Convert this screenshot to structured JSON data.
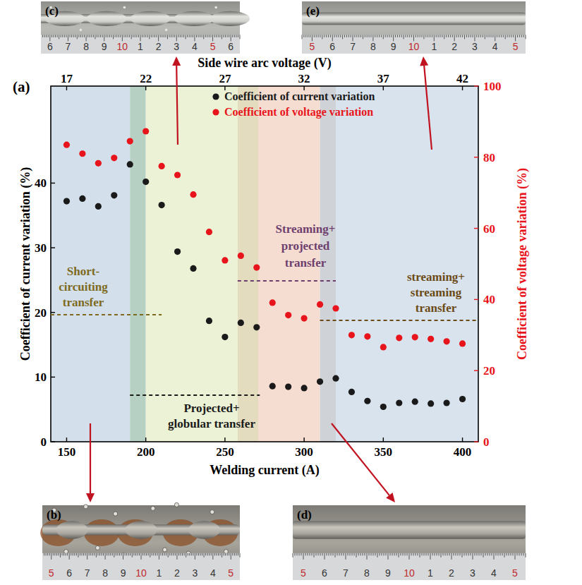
{
  "chart_data": {
    "type": "scatter",
    "panel_label": "(a)",
    "x_label": "Welding current (A)",
    "x2_label": "Side wire arc voltage (V)",
    "y_label": "Coefficient of current variation (%)",
    "y2_label": "Coefficient of voltage variation (%)",
    "x": [
      150,
      160,
      170,
      180,
      190,
      200,
      210,
      220,
      230,
      240,
      250,
      260,
      270,
      280,
      290,
      300,
      310,
      320,
      330,
      340,
      350,
      360,
      370,
      380,
      390,
      400
    ],
    "xlim": [
      140,
      410
    ],
    "xticks": [
      150,
      200,
      250,
      300,
      350,
      400
    ],
    "x2lim": [
      16,
      43
    ],
    "x2ticks": [
      17,
      22,
      27,
      32,
      37,
      42
    ],
    "ylim": [
      0,
      55
    ],
    "yticks": [
      0,
      10,
      20,
      30,
      40
    ],
    "y2lim": [
      0,
      100
    ],
    "y2ticks": [
      0,
      20,
      40,
      60,
      80,
      100
    ],
    "legend": "upper center",
    "series": [
      {
        "name": "Coefficient of current variation",
        "color": "#1a1a1a",
        "marker": "circle",
        "values": [
          37.2,
          37.6,
          36.4,
          38.1,
          42.9,
          40.2,
          36.6,
          29.4,
          26.8,
          18.7,
          16.2,
          18.4,
          17.7,
          8.6,
          8.5,
          8.3,
          9.3,
          9.8,
          7.7,
          6.3,
          5.4,
          6.0,
          6.2,
          5.9,
          6.0,
          6.6
        ]
      },
      {
        "name": "Coefficient of voltage variation",
        "color": "#e8141b",
        "marker": "circle",
        "axis": "y2",
        "values": [
          83.5,
          81.0,
          78.3,
          79.8,
          84.5,
          87.3,
          77.5,
          75.0,
          69.5,
          59.0,
          51.0,
          52.3,
          49.0,
          39.1,
          35.6,
          34.7,
          38.6,
          37.5,
          30.0,
          29.6,
          26.6,
          29.2,
          29.4,
          28.9,
          28.2,
          27.6
        ]
      }
    ],
    "regions": [
      {
        "x": [
          140,
          190
        ],
        "color": "#d3dfeb"
      },
      {
        "x": [
          190,
          200
        ],
        "color": "#b7d0c4"
      },
      {
        "x": [
          200,
          258
        ],
        "color": "#ecf2d6"
      },
      {
        "x": [
          258,
          271
        ],
        "color": "#e3dcbf"
      },
      {
        "x": [
          271,
          310
        ],
        "color": "#f6ddd2"
      },
      {
        "x": [
          310,
          320
        ],
        "color": "#cfd2d6"
      },
      {
        "x": [
          320,
          410
        ],
        "color": "#d9e3ee"
      }
    ],
    "annotations": [
      {
        "lines": [
          "Short-",
          "circuiting",
          "transfer"
        ],
        "color": "#7d6a1e"
      },
      {
        "lines": [
          "Projected+",
          "globular transfer"
        ],
        "color": "#1a1a1a"
      },
      {
        "lines": [
          "Streaming+",
          "projected",
          "transfer"
        ],
        "color": "#6e3f6e"
      },
      {
        "lines": [
          "streaming+",
          "streaming",
          "transfer"
        ],
        "color": "#6b4a16"
      }
    ]
  },
  "photos": [
    {
      "label": "(b)",
      "ruler": [
        {
          "text": "5",
          "color": "#c0282d"
        },
        {
          "text": "6",
          "color": "#333333"
        },
        {
          "text": "7",
          "color": "#333333"
        },
        {
          "text": "8",
          "color": "#333333"
        },
        {
          "text": "9",
          "color": "#333333"
        },
        {
          "text": "10",
          "color": "#c0282d"
        },
        {
          "text": "1",
          "color": "#333333"
        },
        {
          "text": "2",
          "color": "#333333"
        },
        {
          "text": "3",
          "color": "#333333"
        },
        {
          "text": "4",
          "color": "#333333"
        },
        {
          "text": "5",
          "color": "#c0282d"
        }
      ]
    },
    {
      "label": "(c)",
      "ruler": [
        {
          "text": "6",
          "color": "#333333"
        },
        {
          "text": "7",
          "color": "#333333"
        },
        {
          "text": "8",
          "color": "#333333"
        },
        {
          "text": "9",
          "color": "#333333"
        },
        {
          "text": "10",
          "color": "#c0282d"
        },
        {
          "text": "1",
          "color": "#333333"
        },
        {
          "text": "2",
          "color": "#333333"
        },
        {
          "text": "3",
          "color": "#333333"
        },
        {
          "text": "4",
          "color": "#333333"
        },
        {
          "text": "5",
          "color": "#c0282d"
        },
        {
          "text": "6",
          "color": "#333333"
        }
      ]
    },
    {
      "label": "(d)",
      "ruler": [
        {
          "text": "5",
          "color": "#c0282d"
        },
        {
          "text": "6",
          "color": "#333333"
        },
        {
          "text": "7",
          "color": "#333333"
        },
        {
          "text": "8",
          "color": "#333333"
        },
        {
          "text": "9",
          "color": "#333333"
        },
        {
          "text": "10",
          "color": "#c0282d"
        },
        {
          "text": "1",
          "color": "#333333"
        },
        {
          "text": "2",
          "color": "#333333"
        },
        {
          "text": "3",
          "color": "#333333"
        },
        {
          "text": "4",
          "color": "#333333"
        },
        {
          "text": "5",
          "color": "#c0282d"
        }
      ]
    },
    {
      "label": "(e)",
      "ruler": [
        {
          "text": "5",
          "color": "#c0282d"
        },
        {
          "text": "6",
          "color": "#333333"
        },
        {
          "text": "7",
          "color": "#333333"
        },
        {
          "text": "8",
          "color": "#333333"
        },
        {
          "text": "9",
          "color": "#333333"
        },
        {
          "text": "10",
          "color": "#c0282d"
        },
        {
          "text": "1",
          "color": "#333333"
        },
        {
          "text": "2",
          "color": "#333333"
        },
        {
          "text": "3",
          "color": "#333333"
        },
        {
          "text": "4",
          "color": "#333333"
        },
        {
          "text": "5",
          "color": "#c0282d"
        }
      ]
    }
  ]
}
